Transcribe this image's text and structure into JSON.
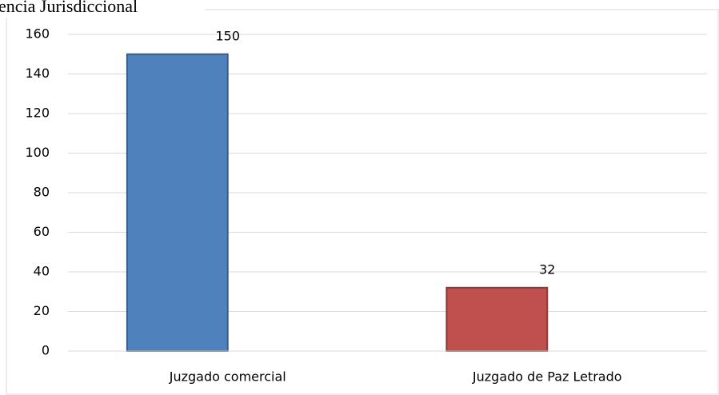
{
  "chart_data": {
    "type": "bar",
    "title": "encia Jurisdiccional",
    "categories": [
      "Juzgado comercial",
      "Juzgado de Paz Letrado"
    ],
    "values": [
      150,
      32
    ],
    "colors": [
      "#4f81bd",
      "#c0504d"
    ],
    "edge_colors": [
      "#385d8a",
      "#8c3836"
    ],
    "ylim": [
      0,
      160
    ],
    "yticks": [
      0,
      20,
      40,
      60,
      80,
      100,
      120,
      140,
      160
    ],
    "grid": true,
    "value_labels_shown": true
  }
}
